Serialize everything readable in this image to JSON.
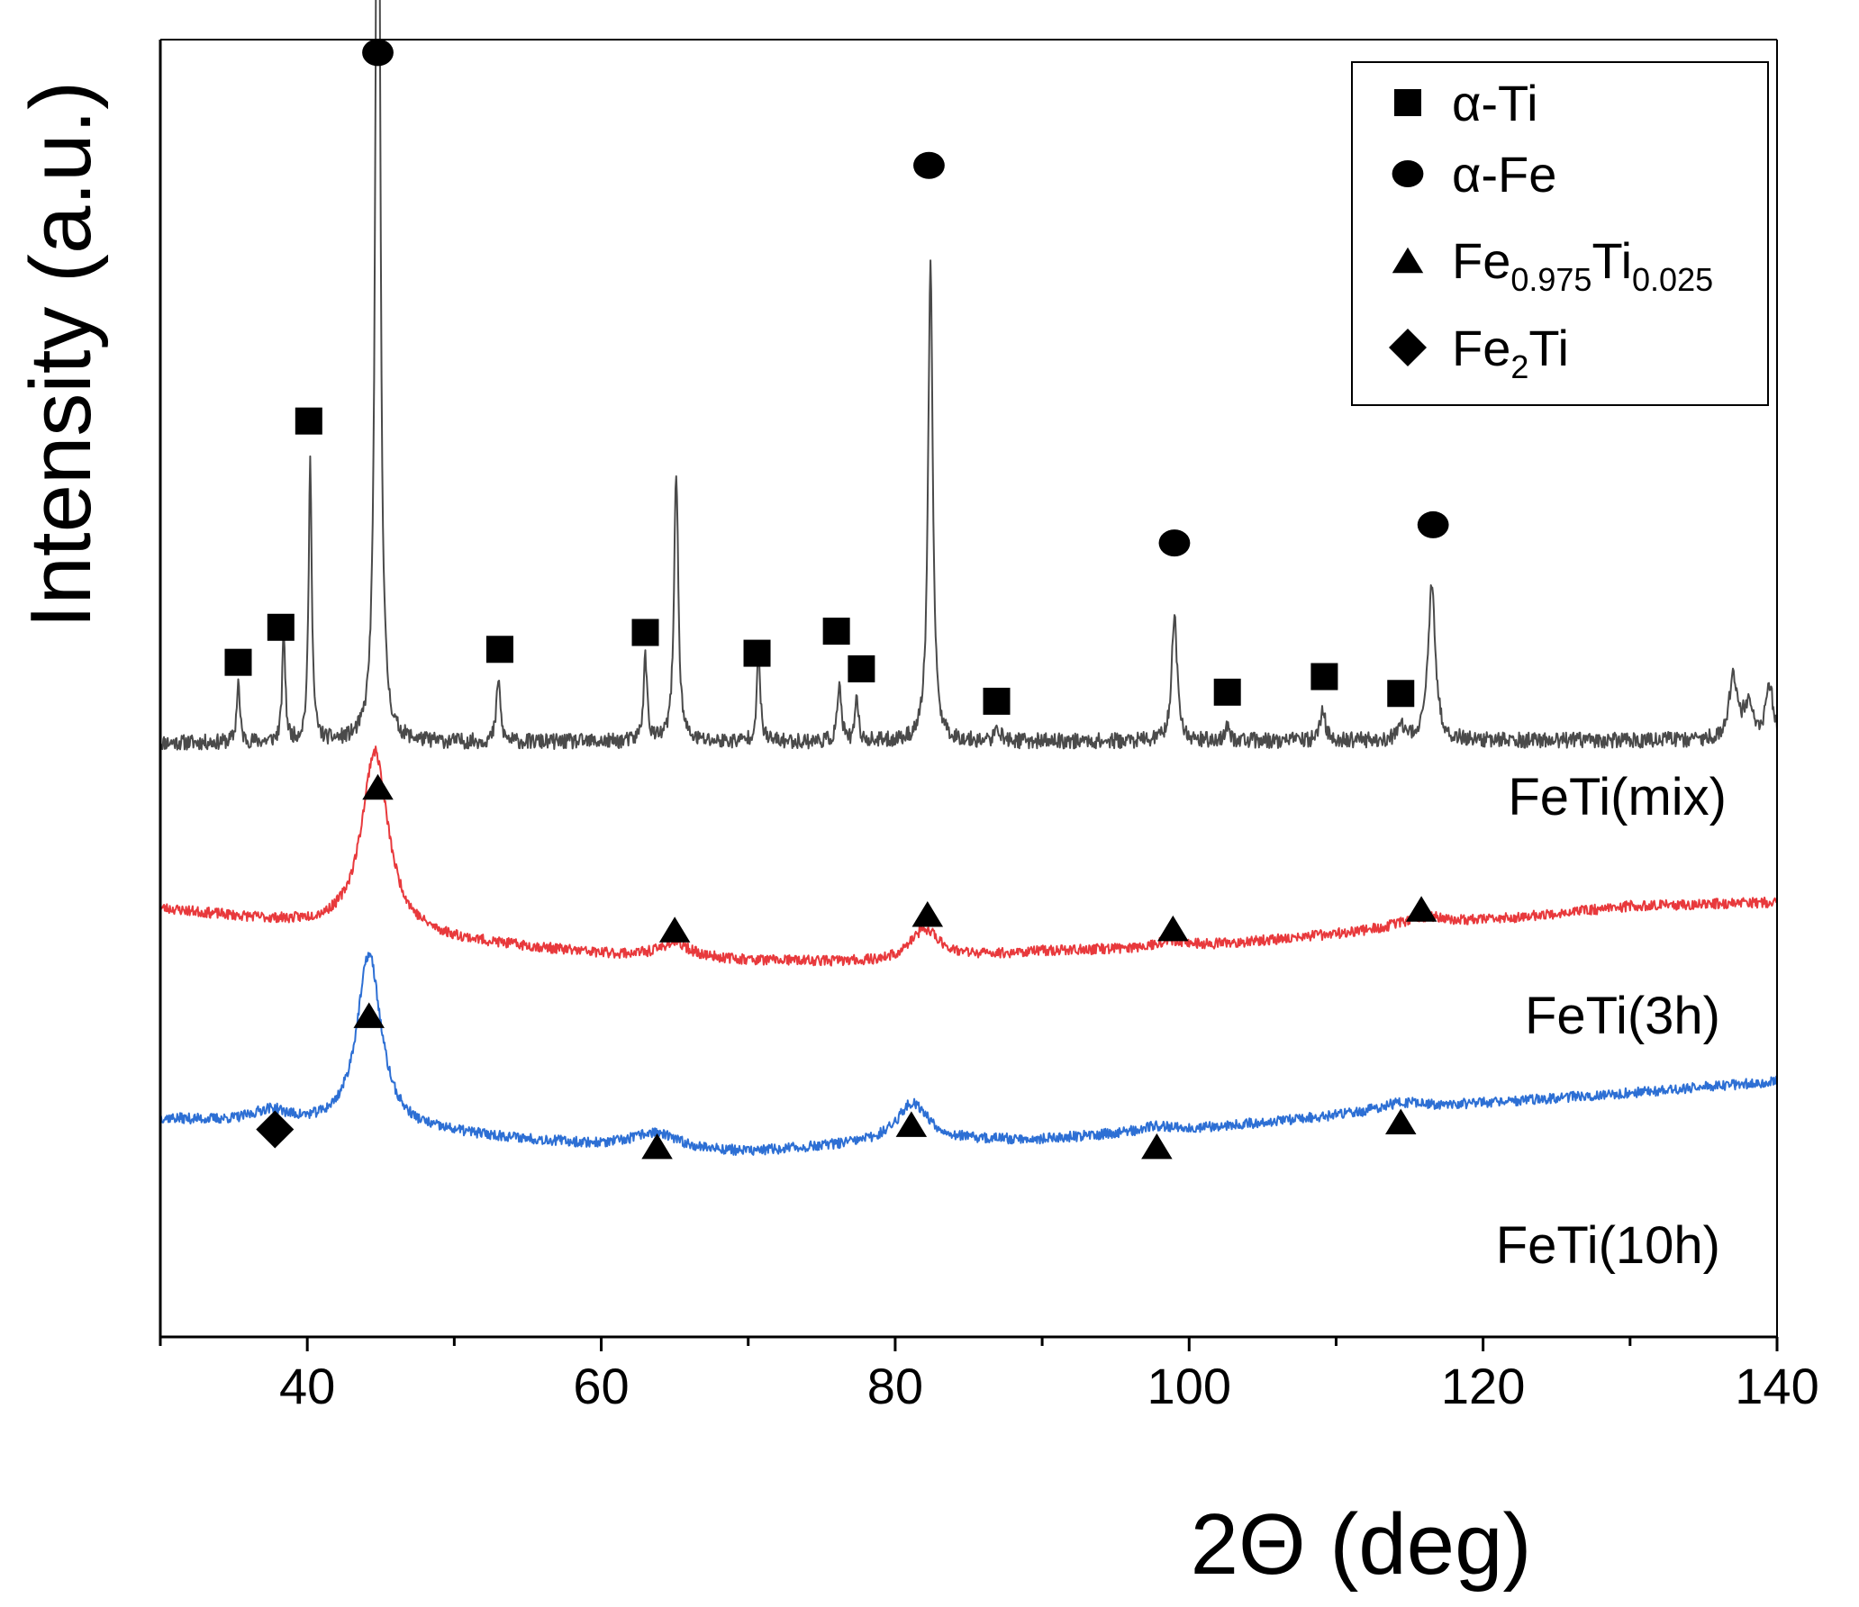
{
  "chart_data": {
    "type": "line",
    "title": "",
    "xlabel": "2Θ (deg)",
    "ylabel": "Intensity (a.u.)",
    "xlim": [
      30,
      140
    ],
    "ylim": [
      0,
      1
    ],
    "xticks_major": [
      40,
      60,
      80,
      100,
      120,
      140
    ],
    "xticks_minor": [
      30,
      50,
      70,
      90,
      110,
      130
    ],
    "grid": false,
    "legend_position": "top-right",
    "legend": [
      {
        "marker": "square",
        "label": "α-Ti"
      },
      {
        "marker": "circle",
        "label": "α-Fe"
      },
      {
        "marker": "triangle",
        "label": "Fe",
        "sub1": "0.975",
        "mid": "Ti",
        "sub2": "0.025"
      },
      {
        "marker": "diamond",
        "label": "Fe",
        "sub1": "2",
        "mid": "Ti"
      }
    ],
    "series": [
      {
        "name": "FeTi(mix)",
        "label": "FeTi(mix)",
        "color": "#4a4a4a",
        "baseline": [
          [
            30,
            0.458
          ],
          [
            140,
            0.46
          ]
        ],
        "noise": 0.006,
        "seed": 11,
        "peaks": [
          {
            "x": 35.3,
            "h": 0.048,
            "w": 0.12
          },
          {
            "x": 38.4,
            "h": 0.085,
            "w": 0.12
          },
          {
            "x": 40.2,
            "h": 0.215,
            "w": 0.13
          },
          {
            "x": 44.8,
            "h": 0.985,
            "w": 0.16
          },
          {
            "x": 53.0,
            "h": 0.05,
            "w": 0.15
          },
          {
            "x": 63.0,
            "h": 0.065,
            "w": 0.15
          },
          {
            "x": 65.1,
            "h": 0.21,
            "w": 0.17
          },
          {
            "x": 70.7,
            "h": 0.065,
            "w": 0.15
          },
          {
            "x": 76.2,
            "h": 0.045,
            "w": 0.15
          },
          {
            "x": 77.4,
            "h": 0.035,
            "w": 0.12
          },
          {
            "x": 82.4,
            "h": 0.365,
            "w": 0.19
          },
          {
            "x": 87.0,
            "h": 0.01,
            "w": 0.2
          },
          {
            "x": 99.0,
            "h": 0.098,
            "w": 0.22
          },
          {
            "x": 102.6,
            "h": 0.01,
            "w": 0.2
          },
          {
            "x": 109.1,
            "h": 0.025,
            "w": 0.2
          },
          {
            "x": 114.4,
            "h": 0.01,
            "w": 0.25
          },
          {
            "x": 116.5,
            "h": 0.118,
            "w": 0.3
          },
          {
            "x": 137.0,
            "h": 0.05,
            "w": 0.3
          },
          {
            "x": 138.0,
            "h": 0.025,
            "w": 0.4
          },
          {
            "x": 139.5,
            "h": 0.04,
            "w": 0.3
          }
        ]
      },
      {
        "name": "FeTi(3h)",
        "label": "FeTi(3h)",
        "color": "#e8393c",
        "baseline": [
          [
            30,
            0.33
          ],
          [
            40,
            0.317
          ],
          [
            50,
            0.305
          ],
          [
            60,
            0.295
          ],
          [
            70,
            0.29
          ],
          [
            80,
            0.288
          ],
          [
            90,
            0.297
          ],
          [
            100,
            0.3
          ],
          [
            110,
            0.31
          ],
          [
            120,
            0.32
          ],
          [
            130,
            0.332
          ],
          [
            140,
            0.335
          ]
        ],
        "noise": 0.004,
        "seed": 23,
        "peaks": [
          {
            "x": 44.6,
            "h": 0.14,
            "w": 1.1
          },
          {
            "x": 65.0,
            "h": 0.011,
            "w": 1.2
          },
          {
            "x": 82.0,
            "h": 0.024,
            "w": 1.3
          },
          {
            "x": 98.8,
            "h": 0.006,
            "w": 1.4
          },
          {
            "x": 116.0,
            "h": 0.008,
            "w": 2.0
          }
        ]
      },
      {
        "name": "FeTi(10h)",
        "label": "FeTi(10h)",
        "color": "#2d6fd4",
        "baseline": [
          [
            30,
            0.168
          ],
          [
            40,
            0.162
          ],
          [
            50,
            0.156
          ],
          [
            60,
            0.147
          ],
          [
            70,
            0.142
          ],
          [
            80,
            0.15
          ],
          [
            90,
            0.152
          ],
          [
            100,
            0.16
          ],
          [
            110,
            0.17
          ],
          [
            120,
            0.18
          ],
          [
            130,
            0.188
          ],
          [
            140,
            0.197
          ]
        ],
        "noise": 0.004,
        "seed": 37,
        "peaks": [
          {
            "x": 37.5,
            "h": 0.01,
            "w": 1.5
          },
          {
            "x": 44.2,
            "h": 0.135,
            "w": 1.0
          },
          {
            "x": 63.6,
            "h": 0.012,
            "w": 1.8
          },
          {
            "x": 81.2,
            "h": 0.03,
            "w": 1.3
          },
          {
            "x": 97.8,
            "h": 0.004,
            "w": 1.5
          },
          {
            "x": 114.5,
            "h": 0.006,
            "w": 2.0
          }
        ]
      }
    ],
    "annotations": [
      {
        "marker": "square",
        "x": 35.3,
        "y": 0.52
      },
      {
        "marker": "square",
        "x": 38.2,
        "y": 0.547
      },
      {
        "marker": "square",
        "x": 40.1,
        "y": 0.706
      },
      {
        "marker": "circle",
        "x": 44.8,
        "y": 0.99
      },
      {
        "marker": "square",
        "x": 53.1,
        "y": 0.53
      },
      {
        "marker": "square",
        "x": 63.0,
        "y": 0.543
      },
      {
        "marker": "square",
        "x": 70.6,
        "y": 0.527
      },
      {
        "marker": "square",
        "x": 76.0,
        "y": 0.544
      },
      {
        "marker": "square",
        "x": 77.7,
        "y": 0.515
      },
      {
        "marker": "circle",
        "x": 82.3,
        "y": 0.903
      },
      {
        "marker": "square",
        "x": 86.9,
        "y": 0.49
      },
      {
        "marker": "circle",
        "x": 99.0,
        "y": 0.612
      },
      {
        "marker": "square",
        "x": 102.6,
        "y": 0.497
      },
      {
        "marker": "square",
        "x": 109.2,
        "y": 0.509
      },
      {
        "marker": "square",
        "x": 114.4,
        "y": 0.496
      },
      {
        "marker": "circle",
        "x": 116.6,
        "y": 0.626
      },
      {
        "marker": "triangle",
        "x": 44.8,
        "y": 0.424
      },
      {
        "marker": "triangle",
        "x": 65.0,
        "y": 0.314
      },
      {
        "marker": "triangle",
        "x": 82.2,
        "y": 0.326
      },
      {
        "marker": "triangle",
        "x": 98.9,
        "y": 0.315
      },
      {
        "marker": "triangle",
        "x": 115.8,
        "y": 0.33
      },
      {
        "marker": "triangle",
        "x": 44.2,
        "y": 0.248
      },
      {
        "marker": "diamond",
        "x": 37.8,
        "y": 0.16
      },
      {
        "marker": "triangle",
        "x": 63.8,
        "y": 0.147
      },
      {
        "marker": "triangle",
        "x": 81.1,
        "y": 0.164
      },
      {
        "marker": "triangle",
        "x": 97.8,
        "y": 0.147
      },
      {
        "marker": "triangle",
        "x": 114.4,
        "y": 0.166
      }
    ]
  }
}
